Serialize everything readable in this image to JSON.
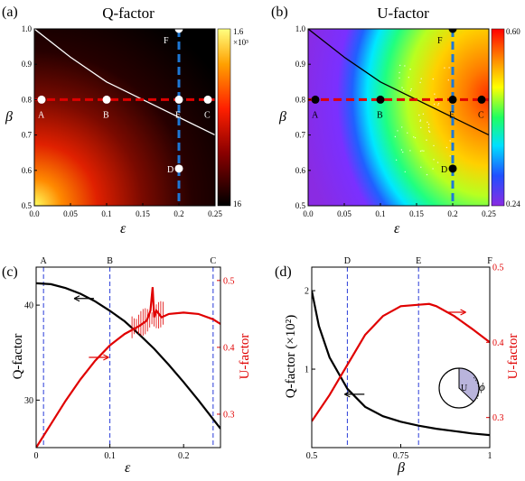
{
  "chart_data": [
    {
      "panel": "(a)",
      "type": "heatmap",
      "title": "Q-factor",
      "xlabel": "ε",
      "ylabel": "β",
      "xlim": [
        0,
        0.25
      ],
      "ylim": [
        0.5,
        1.0
      ],
      "xticks": [
        "0.0",
        "0.05",
        "0.1",
        "0.15",
        "0.2",
        "0.25"
      ],
      "yticks": [
        "0.5",
        "0.6",
        "0.7",
        "0.8",
        "0.9",
        "1.0"
      ],
      "colorbar": {
        "max_label": "1.6",
        "exp_label": "×10³",
        "min_label": "16",
        "colors": [
          "#000000",
          "#8b0000",
          "#ff2000",
          "#ffa000",
          "#ffff80"
        ]
      },
      "boundary_curve": {
        "x": [
          0,
          0.05,
          0.1,
          0.15,
          0.2,
          0.25
        ],
        "y": [
          1.0,
          0.92,
          0.85,
          0.8,
          0.75,
          0.7
        ],
        "color": "#ffffff"
      },
      "lines": [
        {
          "orient": "horizontal",
          "value": 0.8,
          "color": "#e00000"
        },
        {
          "orient": "vertical",
          "value": 0.2,
          "color": "#1e78d6"
        }
      ],
      "points": [
        {
          "label": "A",
          "x": 0.01,
          "y": 0.8
        },
        {
          "label": "B",
          "x": 0.1,
          "y": 0.8
        },
        {
          "label": "E",
          "x": 0.2,
          "y": 0.8
        },
        {
          "label": "C",
          "x": 0.24,
          "y": 0.8
        },
        {
          "label": "D",
          "x": 0.2,
          "y": 0.605
        },
        {
          "label": "F",
          "x": 0.2,
          "y": 1.0
        }
      ],
      "point_color": "#ffffff"
    },
    {
      "panel": "(b)",
      "type": "heatmap",
      "title": "U-factor",
      "xlabel": "ε",
      "ylabel": "β",
      "xlim": [
        0,
        0.25
      ],
      "ylim": [
        0.5,
        1.0
      ],
      "xticks": [
        "0.0",
        "0.05",
        "0.1",
        "0.15",
        "0.2",
        "0.25"
      ],
      "yticks": [
        "0.5",
        "0.6",
        "0.7",
        "0.8",
        "0.9",
        "1.0"
      ],
      "colorbar": {
        "max_label": "0.60",
        "min_label": "0.24",
        "colors": [
          "#8a2be2",
          "#2050ff",
          "#00e0ff",
          "#20ff60",
          "#ffff00",
          "#ff8000",
          "#ff0000"
        ]
      },
      "boundary_curve": {
        "x": [
          0,
          0.05,
          0.1,
          0.15,
          0.2,
          0.25
        ],
        "y": [
          1.0,
          0.92,
          0.85,
          0.8,
          0.75,
          0.7
        ],
        "color": "#000000"
      },
      "lines": [
        {
          "orient": "horizontal",
          "value": 0.8,
          "color": "#e00000"
        },
        {
          "orient": "vertical",
          "value": 0.2,
          "color": "#1e78d6"
        }
      ],
      "points": [
        {
          "label": "A",
          "x": 0.01,
          "y": 0.8
        },
        {
          "label": "B",
          "x": 0.1,
          "y": 0.8
        },
        {
          "label": "E",
          "x": 0.2,
          "y": 0.8
        },
        {
          "label": "C",
          "x": 0.24,
          "y": 0.8
        },
        {
          "label": "D",
          "x": 0.2,
          "y": 0.605
        },
        {
          "label": "F",
          "x": 0.2,
          "y": 1.0
        }
      ],
      "point_color": "#000000"
    },
    {
      "panel": "(c)",
      "type": "line",
      "xlabel": "ε",
      "ylabel_left": "Q-factor",
      "ylabel_right": "U-factor",
      "xlim": [
        0,
        0.25
      ],
      "ylim_left": [
        25,
        44
      ],
      "ylim_right": [
        0.25,
        0.52
      ],
      "xticks": [
        "0",
        "0.1",
        "0.2"
      ],
      "xtick_values": [
        0,
        0.1,
        0.2
      ],
      "yticks_left": [
        "30",
        "40"
      ],
      "yticks_right": [
        "0.3",
        "0.4",
        "0.5"
      ],
      "top_labels": [
        {
          "label": "A",
          "x": 0.01
        },
        {
          "label": "B",
          "x": 0.1
        },
        {
          "label": "C",
          "x": 0.24
        }
      ],
      "series": [
        {
          "axis": "left",
          "color": "#000000",
          "x": [
            0,
            0.02,
            0.04,
            0.06,
            0.08,
            0.1,
            0.12,
            0.14,
            0.16,
            0.18,
            0.2,
            0.22,
            0.24,
            0.25
          ],
          "y": [
            42.3,
            42.2,
            41.8,
            41.2,
            40.4,
            39.4,
            38.3,
            36.9,
            35.4,
            33.7,
            31.9,
            30.0,
            28.0,
            27.0
          ]
        },
        {
          "axis": "right",
          "color": "#e00000",
          "x": [
            0,
            0.02,
            0.04,
            0.06,
            0.08,
            0.1,
            0.12,
            0.14,
            0.15,
            0.155,
            0.158,
            0.16,
            0.163,
            0.17,
            0.18,
            0.2,
            0.22,
            0.24,
            0.25
          ],
          "y": [
            0.25,
            0.285,
            0.32,
            0.352,
            0.38,
            0.403,
            0.42,
            0.432,
            0.44,
            0.455,
            0.49,
            0.445,
            0.455,
            0.445,
            0.45,
            0.452,
            0.45,
            0.442,
            0.435
          ]
        }
      ],
      "arrows": [
        {
          "direction": "left",
          "color": "#000000",
          "x": 0.065,
          "axis": "left",
          "y": 40.7
        },
        {
          "direction": "right",
          "color": "#e00000",
          "x": 0.085,
          "axis": "right",
          "y": 0.385
        }
      ]
    },
    {
      "panel": "(d)",
      "type": "line",
      "xlabel": "β",
      "ylabel_left": "Q-factor (×10²)",
      "ylabel_right": "U-factor",
      "xlim": [
        0.5,
        1.0
      ],
      "ylim_left": [
        0,
        2.3
      ],
      "ylim_right": [
        0.26,
        0.5
      ],
      "xticks": [
        "0.5",
        "0.75",
        "1"
      ],
      "xtick_values": [
        0.5,
        0.75,
        1.0
      ],
      "yticks_left": [
        "1",
        "2"
      ],
      "yticks_right": [
        "0.3",
        "0.4",
        "0.5"
      ],
      "top_labels": [
        {
          "label": "D",
          "x": 0.6
        },
        {
          "label": "E",
          "x": 0.8
        },
        {
          "label": "F",
          "x": 1.0
        }
      ],
      "series": [
        {
          "axis": "left",
          "color": "#000000",
          "x": [
            0.5,
            0.52,
            0.55,
            0.6,
            0.65,
            0.7,
            0.75,
            0.8,
            0.85,
            0.9,
            0.95,
            1.0
          ],
          "y": [
            2.0,
            1.55,
            1.15,
            0.75,
            0.52,
            0.4,
            0.33,
            0.28,
            0.24,
            0.21,
            0.18,
            0.16
          ]
        },
        {
          "axis": "right",
          "color": "#e00000",
          "x": [
            0.5,
            0.55,
            0.6,
            0.65,
            0.7,
            0.75,
            0.8,
            0.83,
            0.85,
            0.9,
            0.95,
            1.0
          ],
          "y": [
            0.295,
            0.33,
            0.37,
            0.41,
            0.435,
            0.448,
            0.45,
            0.451,
            0.448,
            0.435,
            0.418,
            0.4
          ]
        }
      ],
      "arrows": [
        {
          "direction": "left",
          "color": "#000000",
          "x": 0.62,
          "axis": "left",
          "y": 0.68
        },
        {
          "direction": "right",
          "color": "#e00000",
          "x": 0.905,
          "axis": "right",
          "y": 0.44
        }
      ],
      "inset": {
        "label": "U",
        "angle_label": "ϕ"
      }
    }
  ]
}
